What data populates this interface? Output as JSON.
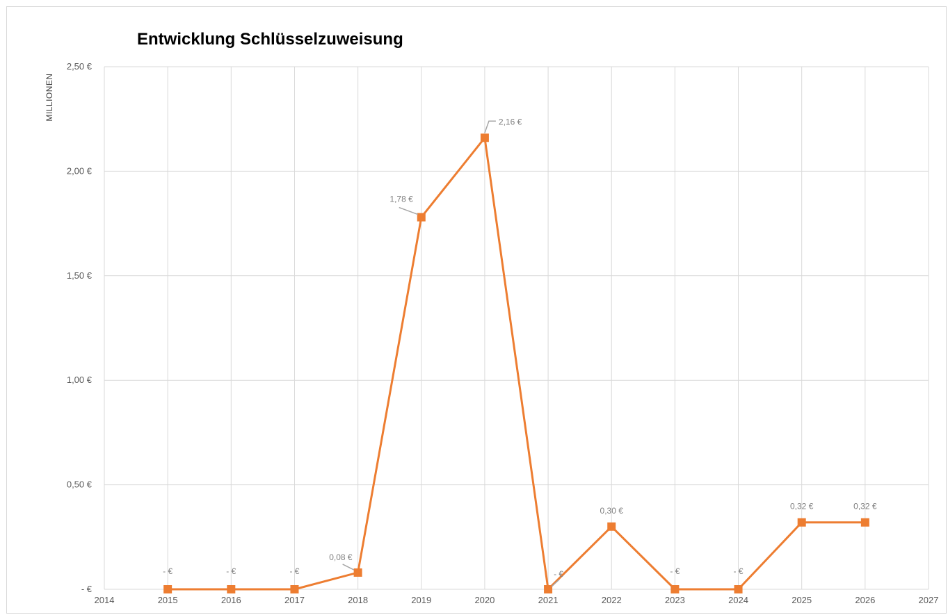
{
  "chart_data": {
    "type": "line",
    "title": "Entwicklung Schlüsselzuweisung",
    "ylabel": "MILLIONEN",
    "xlabel": "",
    "xlim": [
      2014,
      2027
    ],
    "ylim": [
      0,
      2.5
    ],
    "x_ticks": [
      "2014",
      "2015",
      "2016",
      "2017",
      "2018",
      "2019",
      "2020",
      "2021",
      "2022",
      "2023",
      "2024",
      "2025",
      "2026",
      "2027"
    ],
    "y_ticks": [
      {
        "value": 0,
        "label": "-   €"
      },
      {
        "value": 0.5,
        "label": "0,50 €"
      },
      {
        "value": 1.0,
        "label": "1,00 €"
      },
      {
        "value": 1.5,
        "label": "1,50 €"
      },
      {
        "value": 2.0,
        "label": "2,00 €"
      },
      {
        "value": 2.5,
        "label": "2,50 €"
      }
    ],
    "grid": true,
    "legend": "none",
    "series": [
      {
        "color": "#ed7d31",
        "x": [
          2015,
          2016,
          2017,
          2018,
          2019,
          2020,
          2021,
          2022,
          2023,
          2024,
          2025,
          2026
        ],
        "values": [
          0,
          0,
          0,
          0.08,
          1.78,
          2.16,
          0,
          0.3,
          0,
          0,
          0.32,
          0.32
        ],
        "data_labels": [
          "-   €",
          "-   €",
          "-   €",
          "0,08 €",
          "1,78 €",
          "2,16 €",
          "-   €",
          "0,30 €",
          "-   €",
          "-   €",
          "0,32 €",
          "0,32 €"
        ]
      }
    ]
  }
}
